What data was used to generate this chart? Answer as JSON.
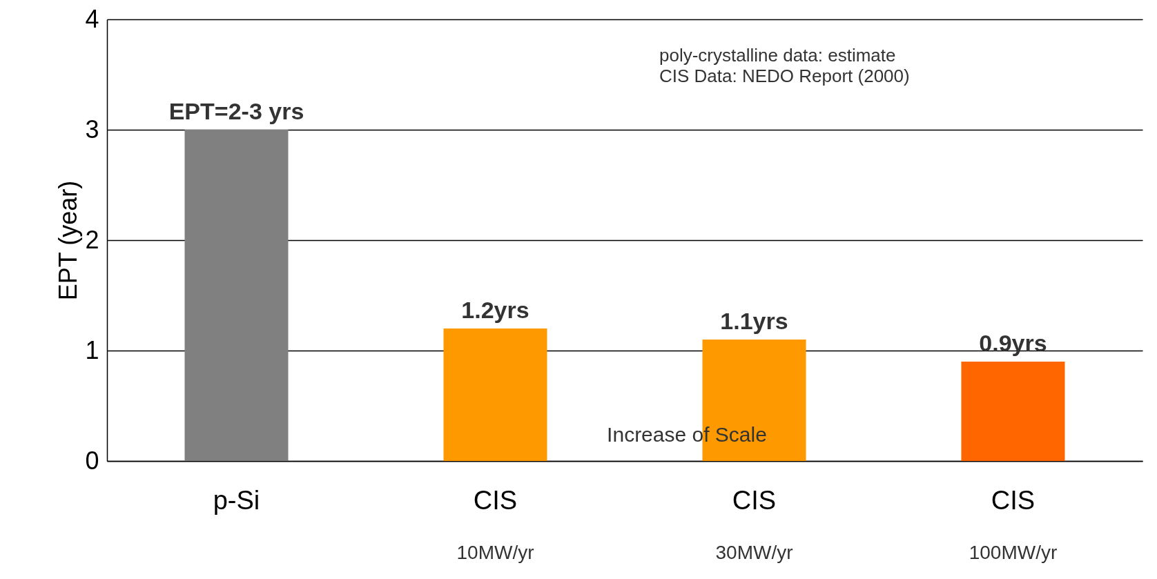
{
  "chart_data": {
    "type": "bar",
    "ylabel": "EPT (year)",
    "categories": [
      "p-Si",
      "CIS\n10MW/yr",
      "CIS\n30MW/yr",
      "CIS\n100MW/yr"
    ],
    "values": [
      3,
      1.2,
      1.1,
      0.9
    ],
    "colors": [
      "#808080",
      "#ff9900",
      "#ff9900",
      "#ff6600"
    ],
    "value_labels": [
      "EPT=2-3 yrs",
      "1.2yrs",
      "1.1yrs",
      "0.9yrs"
    ],
    "ylim": [
      0,
      4
    ],
    "yticks": [
      0,
      1,
      2,
      3,
      4
    ],
    "grid": "y",
    "annotations": [
      "poly-crystalline data: estimate\nCIS Data: NEDO Report (2000)",
      "Increase of Scale"
    ]
  }
}
